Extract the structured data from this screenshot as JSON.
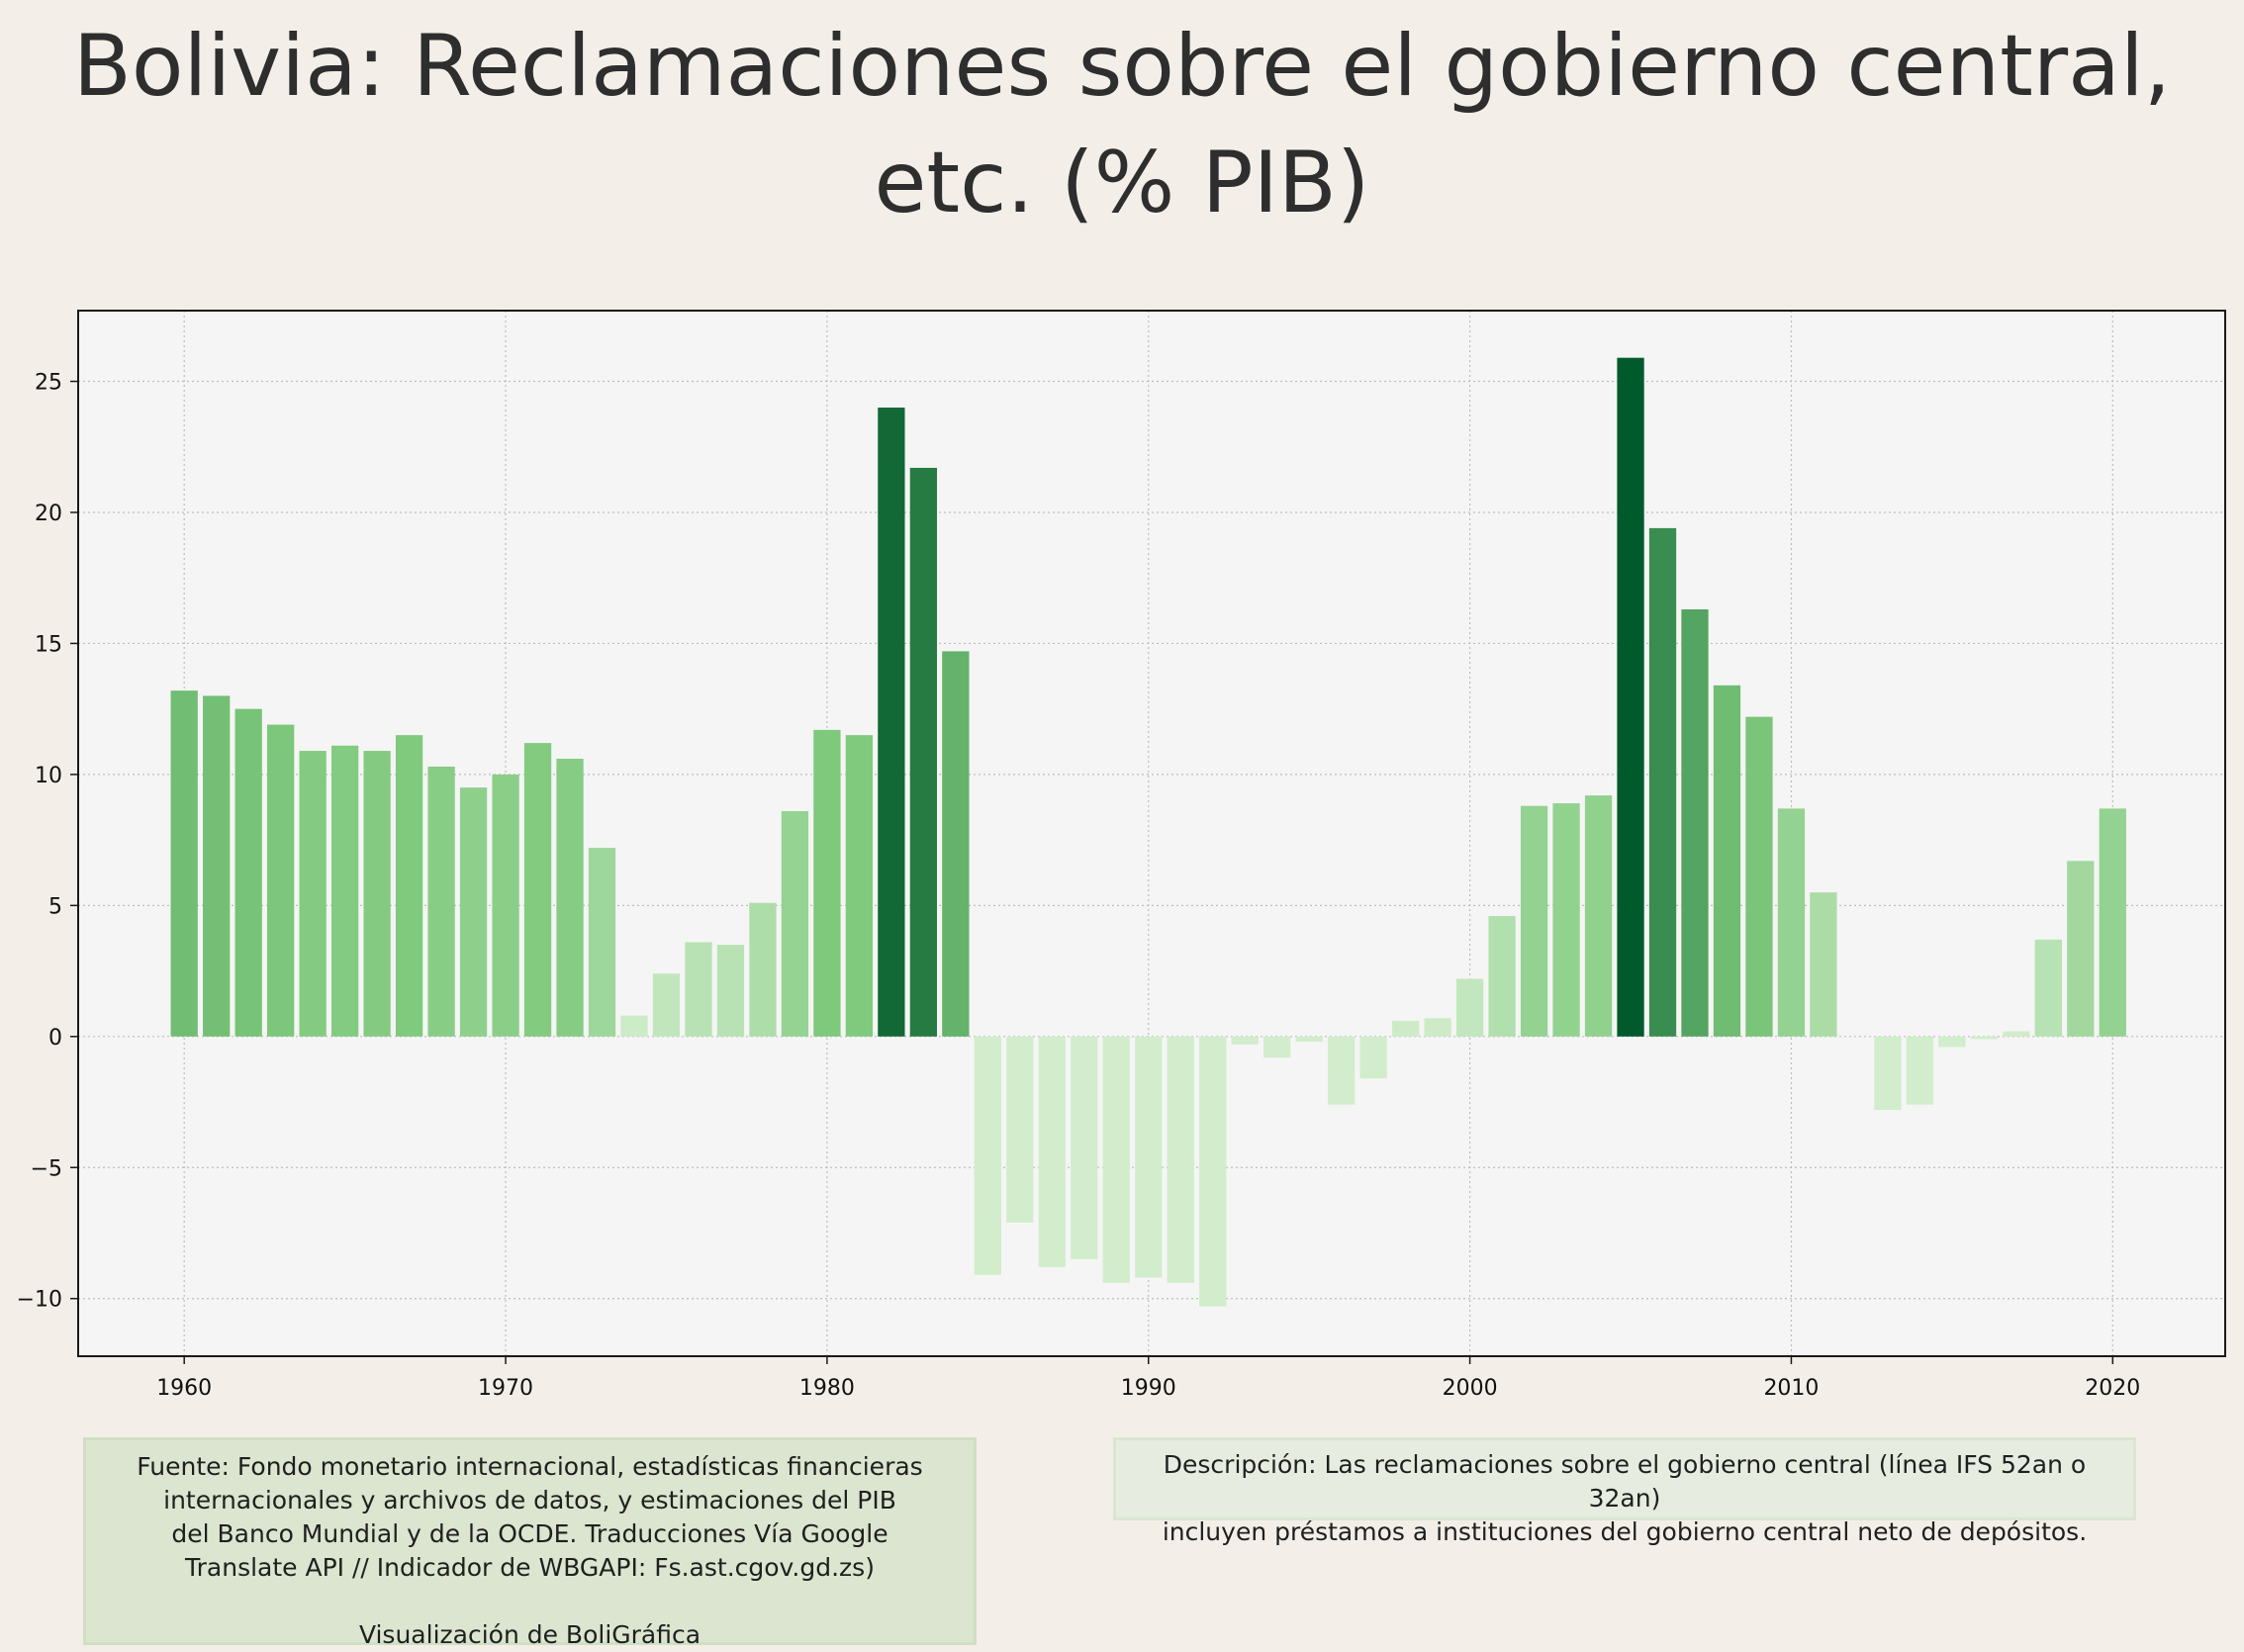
{
  "title_lines": [
    "Bolivia:  Reclamaciones sobre el gobierno central,",
    "etc. (% PIB)"
  ],
  "chart_data": {
    "type": "bar",
    "title": "Bolivia:  Reclamaciones sobre el gobierno central, etc. (% PIB)",
    "xlabel": "",
    "ylabel": "",
    "xlim": [
      1956.7,
      2023.5
    ],
    "ylim": [
      -12.2,
      27.7
    ],
    "x_ticks": [
      1960,
      1970,
      1980,
      1990,
      2000,
      2010,
      2020
    ],
    "y_ticks": [
      25,
      20,
      15,
      10,
      5,
      0,
      -5,
      -10
    ],
    "y_tick_labels": [
      "25",
      "20",
      "15",
      "10",
      "5",
      "0",
      "−5",
      "−10"
    ],
    "grid": true,
    "legend": "none",
    "x": [
      1960,
      1961,
      1962,
      1963,
      1964,
      1965,
      1966,
      1967,
      1968,
      1969,
      1970,
      1971,
      1972,
      1973,
      1974,
      1975,
      1976,
      1977,
      1978,
      1979,
      1980,
      1981,
      1982,
      1983,
      1984,
      1985,
      1986,
      1987,
      1988,
      1989,
      1990,
      1991,
      1992,
      1993,
      1994,
      1995,
      1996,
      1997,
      1998,
      1999,
      2000,
      2001,
      2002,
      2003,
      2004,
      2005,
      2006,
      2007,
      2008,
      2009,
      2010,
      2011,
      2012,
      2013,
      2014,
      2015,
      2016,
      2017,
      2018,
      2019,
      2020
    ],
    "values": [
      13.2,
      13.0,
      12.5,
      11.9,
      10.9,
      11.1,
      10.9,
      11.5,
      10.3,
      9.5,
      10.0,
      11.2,
      10.6,
      7.2,
      0.8,
      2.4,
      3.6,
      3.5,
      5.1,
      8.6,
      11.7,
      11.5,
      24.0,
      21.7,
      14.7,
      -9.1,
      -7.1,
      -8.8,
      -8.5,
      -9.4,
      -9.2,
      -9.4,
      -10.3,
      -0.3,
      -0.8,
      -0.2,
      -2.6,
      -1.6,
      0.6,
      0.7,
      2.2,
      4.6,
      8.8,
      8.9,
      9.2,
      25.9,
      19.4,
      16.3,
      13.4,
      12.2,
      8.7,
      5.5,
      0,
      -2.8,
      -2.6,
      -0.4,
      -0.1,
      0.2,
      3.7,
      6.7,
      8.7
    ],
    "color_scale": [
      "#d2edcc",
      "#7ec97c",
      "#00592a"
    ]
  },
  "source_lines": [
    "Fuente: Fondo monetario internacional, estadísticas financieras",
    "internacionales y archivos de datos, y estimaciones del PIB",
    "del Banco Mundial y de la OCDE. Traducciones Vía Google",
    "Translate API // Indicador de WBGAPI: Fs.ast.cgov.gd.zs)"
  ],
  "credit": "Visualización de BoliGráfica",
  "description_lines": [
    "Descripción: Las reclamaciones sobre el gobierno central (línea IFS 52an o 32an)",
    "incluyen préstamos a instituciones del gobierno central neto de depósitos."
  ],
  "colors": {
    "page_bg": "#f3efe8",
    "plot_bg": "#f5f5f5",
    "source_box": "#dbe5cf",
    "description_box": "#e6ece0"
  }
}
